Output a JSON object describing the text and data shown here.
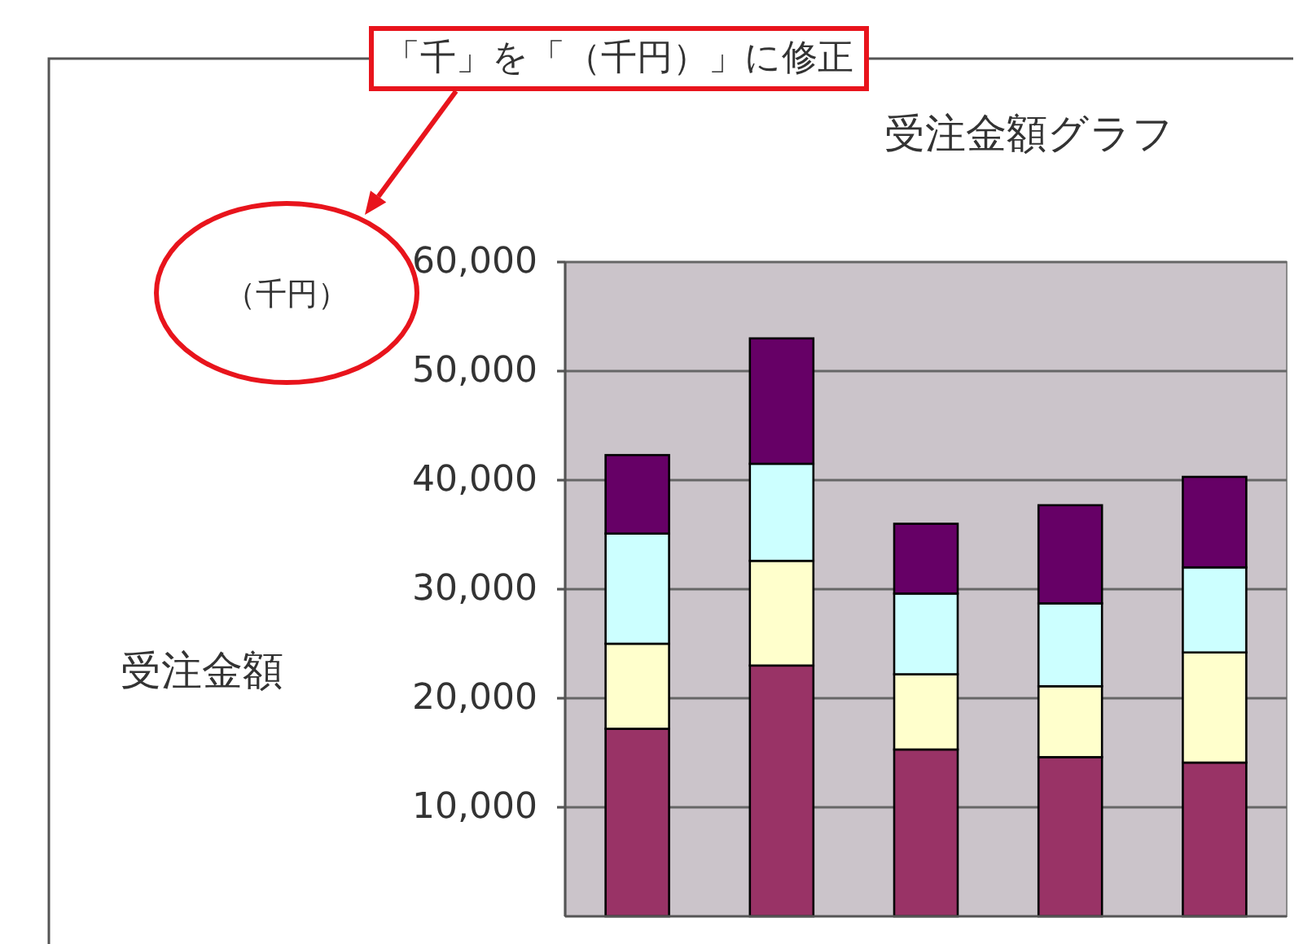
{
  "chart_data": {
    "type": "bar",
    "stacked": true,
    "title": "受注金額グラフ",
    "ylabel": "受注金額",
    "annotations": [
      "（千円）",
      "「千」を「（千円）」に修正"
    ],
    "categories": [
      null,
      null,
      null,
      null,
      null
    ],
    "series": [
      {
        "color": "#993366",
        "values": [
          17200,
          23000,
          15300,
          14600,
          14100
        ]
      },
      {
        "color": "#ffffcc",
        "values": [
          7800,
          9600,
          6900,
          6500,
          10100
        ]
      },
      {
        "color": "#ccffff",
        "values": [
          10100,
          8900,
          7400,
          7600,
          7800
        ]
      },
      {
        "color": "#660066",
        "values": [
          7200,
          11500,
          6400,
          9000,
          8300
        ]
      }
    ],
    "ylim": [
      0,
      60000
    ],
    "yticks": [
      {
        "value": 10000,
        "label": "10,000"
      },
      {
        "value": 20000,
        "label": "20,000"
      },
      {
        "value": 30000,
        "label": "30,000"
      },
      {
        "value": 40000,
        "label": "40,000"
      },
      {
        "value": 50000,
        "label": "50,000"
      },
      {
        "value": 60000,
        "label": "60,000"
      }
    ],
    "grid": "y",
    "tick_labels": "y"
  }
}
